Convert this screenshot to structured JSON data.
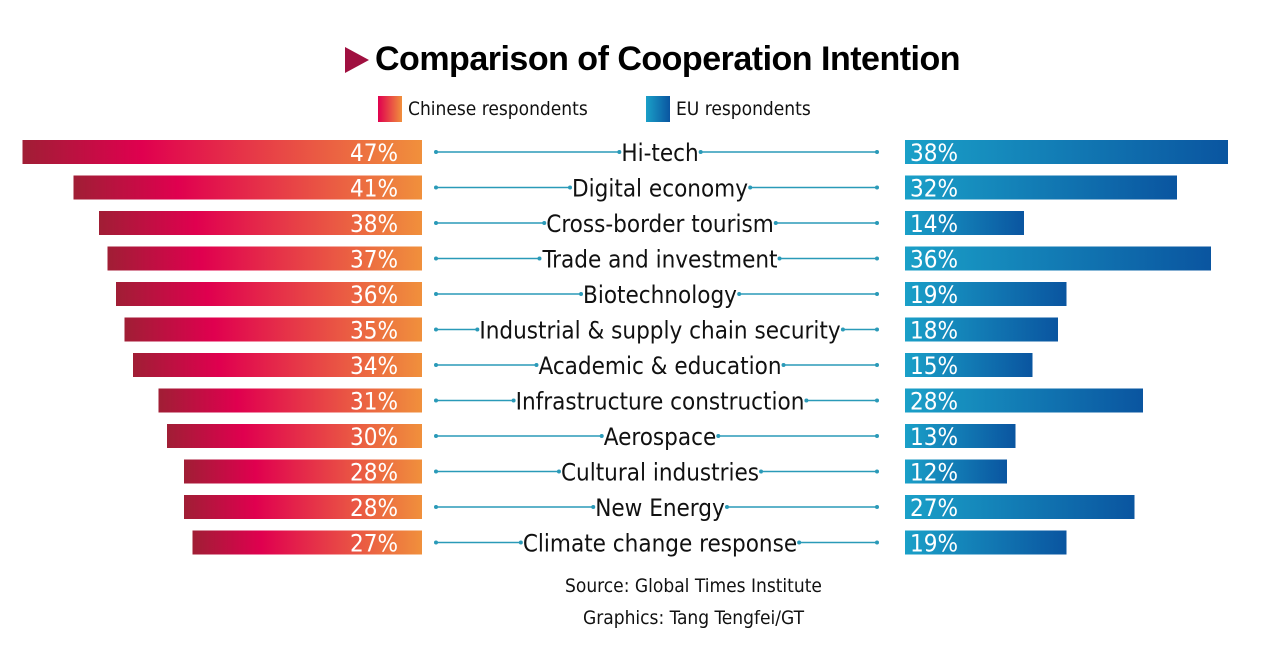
{
  "chart_data": {
    "type": "bar",
    "title": "Comparison of Cooperation Intention",
    "categories": [
      "Hi-tech",
      "Digital economy",
      "Cross-border tourism",
      "Trade and investment",
      "Biotechnology",
      "Industrial & supply chain security",
      "Academic & education",
      "Infrastructure construction",
      "Aerospace",
      "Cultural industries",
      "New Energy",
      "Climate change response"
    ],
    "series": [
      {
        "name": "Chinese respondents",
        "values": [
          47,
          41,
          38,
          37,
          36,
          35,
          34,
          31,
          30,
          28,
          28,
          27
        ],
        "color_start": "#a01e35",
        "color_mid": "#e0004f",
        "color_end": "#f0903c"
      },
      {
        "name": "EU respondents",
        "values": [
          38,
          32,
          14,
          36,
          19,
          18,
          15,
          28,
          13,
          12,
          27,
          19
        ],
        "color_start": "#1aa0c8",
        "color_end": "#0a55a0"
      }
    ],
    "value_suffix": "%",
    "legend_position": "top",
    "grid": false,
    "connector_color": "#2a9ab8"
  },
  "footer": {
    "source": "Source: Global Times Institute",
    "graphics": "Graphics: Tang Tengfei/GT"
  }
}
